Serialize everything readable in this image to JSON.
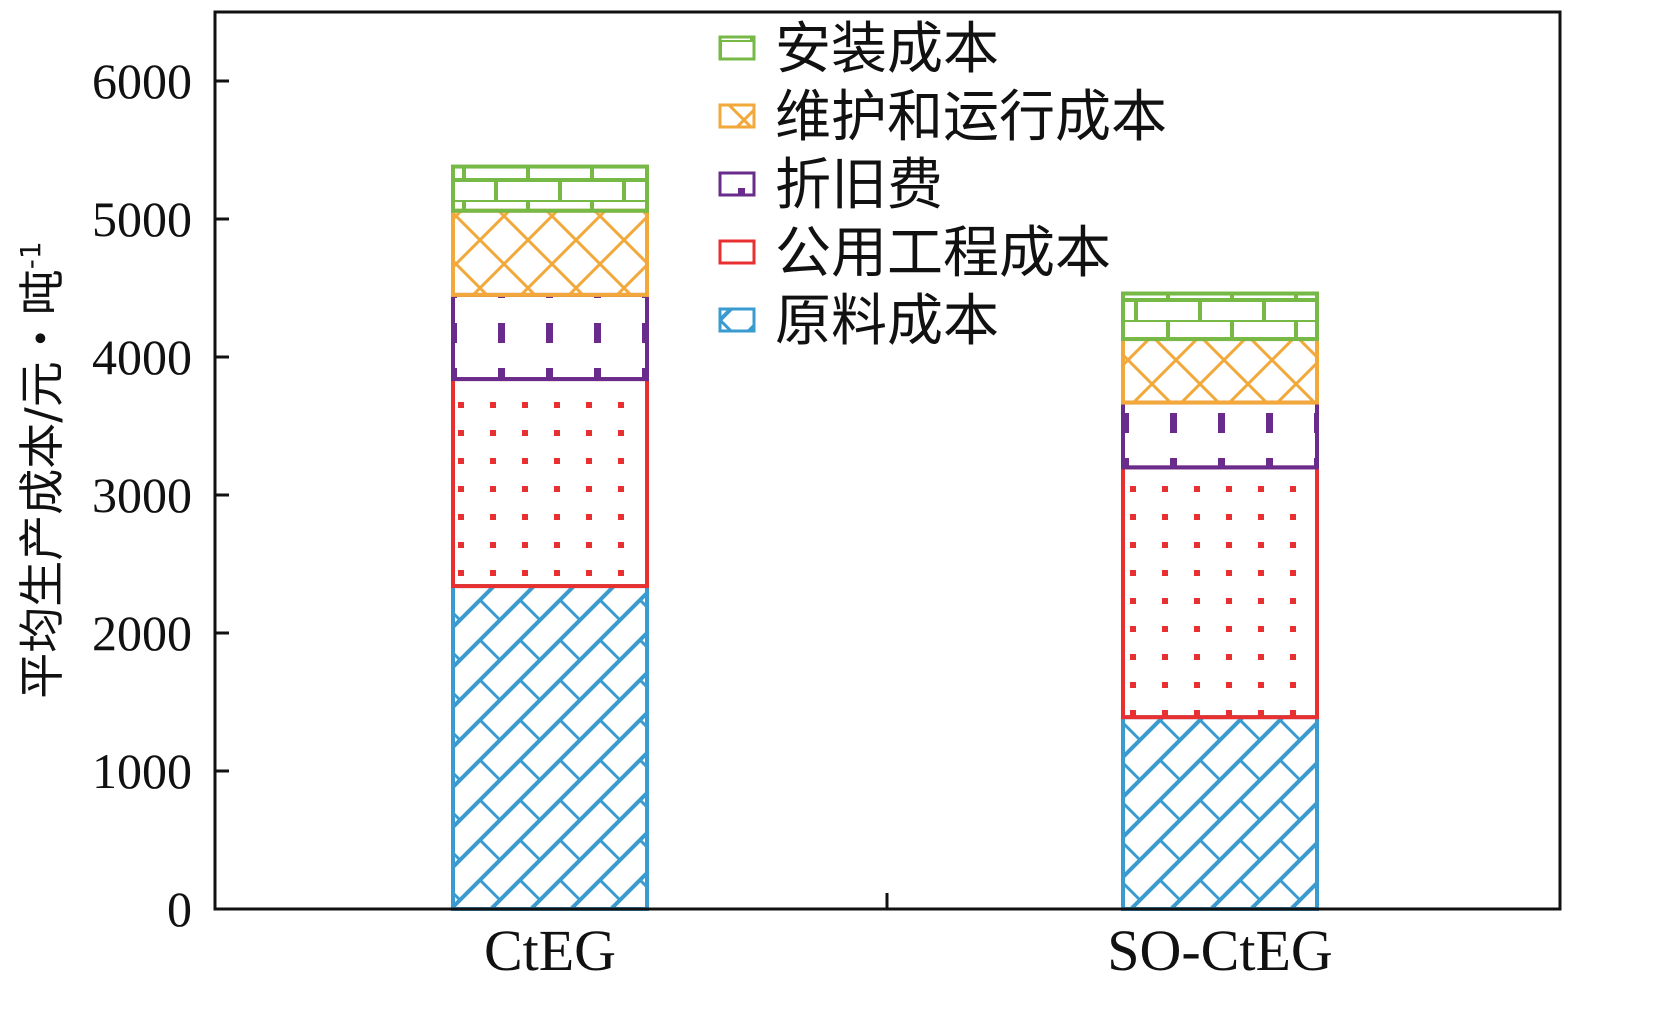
{
  "chart_data": {
    "type": "bar",
    "stacked": true,
    "categories": [
      "CtEG",
      "SO-CtEG"
    ],
    "series": [
      {
        "name": "原料成本",
        "values": [
          2340,
          1390
        ],
        "color": "#3a9bd0",
        "pattern": "diagonal-hatch"
      },
      {
        "name": "公用工程成本",
        "values": [
          1500,
          1810
        ],
        "color": "#e83030",
        "pattern": "dots"
      },
      {
        "name": "折旧费",
        "values": [
          610,
          470
        ],
        "color": "#6a2c8c",
        "pattern": "dashes"
      },
      {
        "name": "维护和运行成本",
        "values": [
          610,
          460
        ],
        "color": "#f2a83a",
        "pattern": "crosshatch"
      },
      {
        "name": "安装成本",
        "values": [
          320,
          330
        ],
        "color": "#76b947",
        "pattern": "brick"
      }
    ],
    "legend_order": [
      "安装成本",
      "维护和运行成本",
      "折旧费",
      "公用工程成本",
      "原料成本"
    ],
    "ylim": [
      0,
      6500
    ],
    "yticks": [
      "0",
      "1000",
      "2000",
      "3000",
      "4000",
      "5000",
      "6000"
    ],
    "ytick_values": [
      0,
      1000,
      2000,
      3000,
      4000,
      5000,
      6000
    ],
    "xlabel": "",
    "ylabel": "平均生产成本/元・吨",
    "ylabel_sup": "-1",
    "legend_position": "top-center",
    "grid": false
  }
}
